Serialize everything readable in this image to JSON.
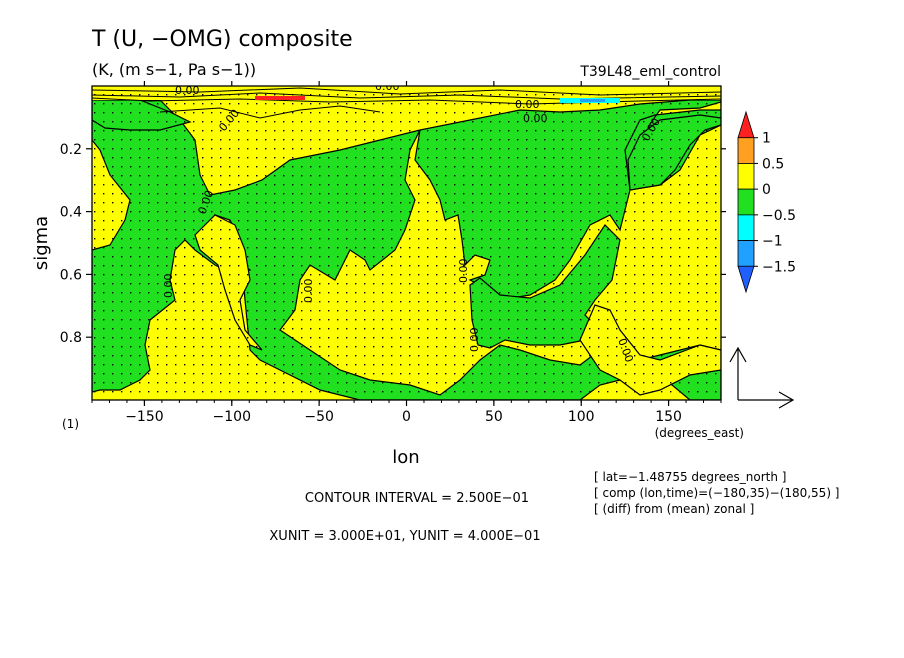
{
  "chart_data": {
    "type": "heatmap",
    "title": "T (U, −OMG) composite",
    "subtitle": "(K, (m s−1, Pa s−1))",
    "run_label": "T39L48_eml_control",
    "xlabel": "lon",
    "ylabel": "sigma",
    "x_units_label": "(degrees_east)",
    "y_units_label": "(1)",
    "xlim": [
      -180,
      180
    ],
    "ylim": [
      1.0,
      0.0
    ],
    "x_ticks": [
      {
        "value": -150,
        "label": "−150"
      },
      {
        "value": -100,
        "label": "−100"
      },
      {
        "value": -50,
        "label": "−50"
      },
      {
        "value": 0,
        "label": "0"
      },
      {
        "value": 50,
        "label": "50"
      },
      {
        "value": 100,
        "label": "100"
      },
      {
        "value": 150,
        "label": "150"
      }
    ],
    "y_ticks": [
      {
        "value": 0.2,
        "label": "0.2"
      },
      {
        "value": 0.4,
        "label": "0.4"
      },
      {
        "value": 0.6,
        "label": "0.6"
      },
      {
        "value": 0.8,
        "label": "0.8"
      }
    ],
    "colorbar": {
      "levels": [
        {
          "label": "1"
        },
        {
          "label": "0.5"
        },
        {
          "label": "0"
        },
        {
          "label": "−0.5"
        },
        {
          "label": "−1"
        },
        {
          "label": "−1.5"
        }
      ],
      "colors": [
        "#ff2020",
        "#ffa020",
        "#ffff00",
        "#20e020",
        "#00ffff",
        "#20a0ff",
        "#2060ff"
      ]
    },
    "contour_labels": [
      "0.00"
    ],
    "regions_negative": [
      {
        "lon_range": [
          -180,
          -170
        ],
        "sigma_range": [
          0.05,
          0.95
        ]
      },
      {
        "lon_range": [
          -160,
          -60
        ],
        "sigma_range": [
          0.05,
          0.55
        ]
      },
      {
        "lon_range": [
          -130,
          -80
        ],
        "sigma_range": [
          0.4,
          0.85
        ]
      },
      {
        "lon_range": [
          -90,
          30
        ],
        "sigma_range": [
          0.05,
          0.9
        ]
      },
      {
        "lon_range": [
          30,
          110
        ],
        "sigma_range": [
          0.55,
          0.85
        ]
      },
      {
        "lon_range": [
          95,
          150
        ],
        "sigma_range": [
          0.65,
          1.0
        ]
      },
      {
        "lon_range": [
          135,
          180
        ],
        "sigma_range": [
          0.05,
          0.3
        ]
      }
    ],
    "vector_reference": {
      "xunit": "3.000E+01",
      "yunit": "4.000E−01"
    },
    "contour_interval": "2.500E−01",
    "annotations": [
      "[ lat=−1.48755 degrees_north ]",
      "[ comp (lon,time)=(−180,35)−(180,55) ]",
      "[ (diff) from (mean) zonal ]"
    ],
    "footer": {
      "contour_interval_text": "CONTOUR INTERVAL = 2.500E−01",
      "units_text": "XUNIT = 3.000E+01, YUNIT = 4.000E−01"
    }
  }
}
